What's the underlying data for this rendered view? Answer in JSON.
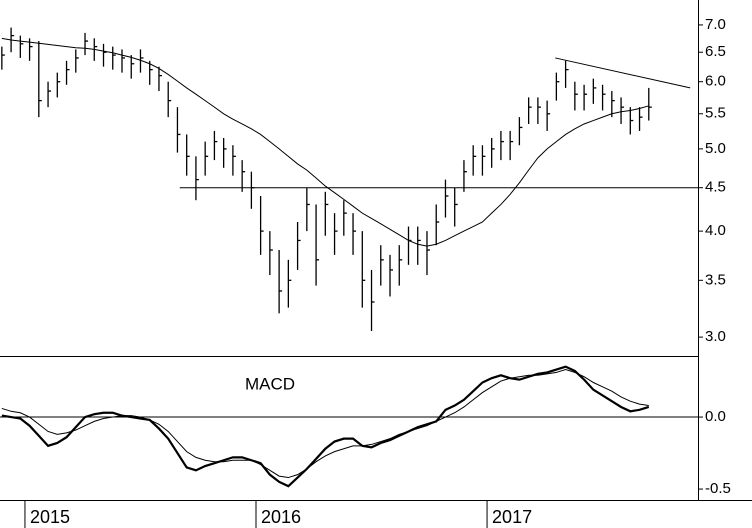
{
  "chart_data": [
    {
      "type": "ohlc",
      "yscale": "log",
      "color": "#000000",
      "xlim": [
        2014.892,
        2017.913
      ],
      "ylim": [
        2.85,
        7.49
      ],
      "yticks": [
        {
          "value": 3,
          "label": "3.0"
        },
        3.5,
        {
          "value": 4,
          "label": "4.0"
        },
        4.5,
        {
          "value": 5,
          "label": "5.0"
        },
        5.5,
        {
          "value": 6,
          "label": "6.0"
        },
        6.5,
        {
          "value": 7,
          "label": "7.0"
        }
      ],
      "x": [
        2014.9,
        2014.94,
        2014.98,
        2015.02,
        2015.06,
        2015.1,
        2015.14,
        2015.18,
        2015.22,
        2015.26,
        2015.3,
        2015.34,
        2015.38,
        2015.42,
        2015.46,
        2015.5,
        2015.54,
        2015.58,
        2015.62,
        2015.66,
        2015.7,
        2015.74,
        2015.78,
        2015.82,
        2015.86,
        2015.9,
        2015.94,
        2015.98,
        2016.02,
        2016.06,
        2016.1,
        2016.14,
        2016.18,
        2016.22,
        2016.26,
        2016.3,
        2016.34,
        2016.38,
        2016.42,
        2016.46,
        2016.5,
        2016.54,
        2016.58,
        2016.62,
        2016.66,
        2016.7,
        2016.74,
        2016.78,
        2016.82,
        2016.86,
        2016.9,
        2016.94,
        2016.98,
        2017.02,
        2017.06,
        2017.1,
        2017.14,
        2017.18,
        2017.22,
        2017.26,
        2017.3,
        2017.34,
        2017.38,
        2017.42,
        2017.46,
        2017.5,
        2017.54,
        2017.58,
        2017.62,
        2017.66,
        2017.7
      ],
      "high": [
        6.6,
        6.95,
        6.8,
        6.75,
        6.7,
        6.0,
        6.15,
        6.35,
        6.55,
        6.85,
        6.75,
        6.65,
        6.6,
        6.55,
        6.45,
        6.55,
        6.35,
        6.25,
        6.0,
        5.6,
        5.2,
        4.9,
        5.1,
        5.25,
        5.15,
        5.05,
        4.85,
        4.7,
        4.4,
        4.0,
        3.8,
        3.7,
        4.1,
        4.5,
        4.3,
        4.45,
        4.2,
        4.35,
        4.2,
        4.0,
        3.6,
        3.85,
        3.75,
        3.85,
        4.05,
        4.05,
        4.0,
        4.3,
        4.6,
        4.5,
        4.85,
        5.05,
        5.05,
        5.15,
        5.25,
        5.25,
        5.45,
        5.75,
        5.75,
        5.7,
        6.15,
        6.35,
        6.0,
        5.95,
        6.05,
        5.95,
        5.85,
        5.75,
        5.6,
        5.6,
        5.9
      ],
      "low": [
        6.2,
        6.5,
        6.4,
        6.35,
        5.45,
        5.6,
        5.75,
        5.95,
        6.15,
        6.45,
        6.35,
        6.25,
        6.2,
        6.15,
        6.05,
        6.15,
        5.95,
        5.85,
        5.45,
        4.95,
        4.65,
        4.35,
        4.65,
        4.85,
        4.75,
        4.65,
        4.45,
        4.25,
        3.75,
        3.55,
        3.2,
        3.25,
        3.6,
        4.0,
        3.45,
        3.95,
        3.75,
        3.95,
        3.75,
        3.25,
        3.05,
        3.45,
        3.35,
        3.45,
        3.65,
        3.65,
        3.55,
        3.85,
        4.15,
        4.05,
        4.45,
        4.65,
        4.65,
        4.75,
        4.85,
        4.85,
        5.05,
        5.35,
        5.35,
        5.25,
        5.7,
        5.9,
        5.55,
        5.55,
        5.65,
        5.55,
        5.45,
        5.35,
        5.2,
        5.25,
        5.4
      ],
      "close": [
        6.45,
        6.8,
        6.65,
        6.6,
        5.7,
        5.85,
        6.0,
        6.2,
        6.4,
        6.7,
        6.6,
        6.5,
        6.45,
        6.4,
        6.3,
        6.4,
        6.2,
        6.1,
        5.7,
        5.2,
        4.9,
        4.6,
        4.9,
        5.1,
        5.0,
        4.9,
        4.7,
        4.5,
        4.0,
        3.8,
        3.4,
        3.5,
        3.9,
        4.3,
        3.7,
        4.3,
        4.0,
        4.2,
        4.0,
        3.5,
        3.3,
        3.7,
        3.6,
        3.7,
        3.9,
        3.9,
        3.8,
        4.1,
        4.4,
        4.3,
        4.7,
        4.9,
        4.9,
        5.0,
        5.1,
        5.1,
        5.3,
        5.6,
        5.6,
        5.5,
        6.0,
        6.2,
        5.8,
        5.8,
        5.9,
        5.8,
        5.7,
        5.6,
        5.4,
        5.45,
        5.6
      ],
      "moving_average": [
        6.75,
        6.72,
        6.7,
        6.68,
        6.66,
        6.64,
        6.62,
        6.6,
        6.58,
        6.57,
        6.55,
        6.52,
        6.49,
        6.45,
        6.41,
        6.36,
        6.3,
        6.22,
        6.12,
        6.01,
        5.9,
        5.8,
        5.7,
        5.6,
        5.5,
        5.42,
        5.35,
        5.28,
        5.2,
        5.1,
        5.0,
        4.9,
        4.8,
        4.72,
        4.62,
        4.52,
        4.44,
        4.36,
        4.28,
        4.2,
        4.14,
        4.08,
        4.02,
        3.96,
        3.9,
        3.86,
        3.84,
        3.86,
        3.9,
        3.95,
        4.0,
        4.05,
        4.1,
        4.2,
        4.3,
        4.42,
        4.56,
        4.72,
        4.88,
        5.0,
        5.1,
        5.2,
        5.28,
        5.35,
        5.4,
        5.45,
        5.5,
        5.53,
        5.55,
        5.58,
        5.62
      ],
      "lines": [
        {
          "x": [
            2015.67,
            2017.913
          ],
          "y": [
            4.5,
            4.5
          ]
        },
        {
          "x": [
            2017.295,
            2017.879
          ],
          "y": [
            6.4,
            5.9
          ]
        }
      ]
    },
    {
      "type": "line",
      "title": "MACD",
      "zero_line": true,
      "xlim": [
        2014.892,
        2017.913
      ],
      "ylim": [
        -0.576,
        0.424
      ],
      "yticks": [
        -0.5,
        {
          "value": 0,
          "label": "0.0"
        }
      ],
      "xticks": [
        2015,
        2016,
        2017
      ],
      "x": [
        2014.9,
        2014.94,
        2014.98,
        2015.02,
        2015.06,
        2015.1,
        2015.14,
        2015.18,
        2015.22,
        2015.26,
        2015.3,
        2015.34,
        2015.38,
        2015.42,
        2015.46,
        2015.5,
        2015.54,
        2015.58,
        2015.62,
        2015.66,
        2015.7,
        2015.74,
        2015.78,
        2015.82,
        2015.86,
        2015.9,
        2015.94,
        2015.98,
        2016.02,
        2016.06,
        2016.1,
        2016.14,
        2016.18,
        2016.22,
        2016.26,
        2016.3,
        2016.34,
        2016.38,
        2016.42,
        2016.46,
        2016.5,
        2016.54,
        2016.58,
        2016.62,
        2016.66,
        2016.7,
        2016.74,
        2016.78,
        2016.82,
        2016.86,
        2016.9,
        2016.94,
        2016.98,
        2017.02,
        2017.06,
        2017.1,
        2017.14,
        2017.18,
        2017.22,
        2017.26,
        2017.3,
        2017.34,
        2017.38,
        2017.42,
        2017.46,
        2017.5,
        2017.54,
        2017.58,
        2017.62,
        2017.66,
        2017.7
      ],
      "series": [
        {
          "color": "#000000",
          "width": 2.2,
          "values": [
            0.01,
            0.0,
            -0.01,
            -0.06,
            -0.13,
            -0.2,
            -0.18,
            -0.14,
            -0.07,
            0.0,
            0.02,
            0.03,
            0.03,
            0.01,
            0.0,
            -0.01,
            -0.02,
            -0.08,
            -0.15,
            -0.25,
            -0.35,
            -0.37,
            -0.34,
            -0.32,
            -0.3,
            -0.28,
            -0.28,
            -0.3,
            -0.32,
            -0.4,
            -0.45,
            -0.48,
            -0.42,
            -0.36,
            -0.29,
            -0.22,
            -0.17,
            -0.15,
            -0.15,
            -0.2,
            -0.21,
            -0.18,
            -0.16,
            -0.13,
            -0.1,
            -0.07,
            -0.05,
            -0.03,
            0.05,
            0.08,
            0.12,
            0.18,
            0.24,
            0.27,
            0.29,
            0.27,
            0.26,
            0.28,
            0.3,
            0.31,
            0.33,
            0.35,
            0.32,
            0.26,
            0.19,
            0.15,
            0.11,
            0.07,
            0.04,
            0.05,
            0.07
          ]
        },
        {
          "color": "#000000",
          "width": 1,
          "values": [
            0.06,
            0.04,
            0.03,
            0.0,
            -0.05,
            -0.1,
            -0.12,
            -0.11,
            -0.09,
            -0.06,
            -0.03,
            -0.01,
            0.0,
            0.01,
            0.01,
            0.0,
            -0.02,
            -0.05,
            -0.1,
            -0.17,
            -0.24,
            -0.28,
            -0.3,
            -0.31,
            -0.31,
            -0.3,
            -0.3,
            -0.3,
            -0.33,
            -0.37,
            -0.41,
            -0.42,
            -0.4,
            -0.36,
            -0.31,
            -0.27,
            -0.24,
            -0.22,
            -0.2,
            -0.2,
            -0.19,
            -0.17,
            -0.15,
            -0.12,
            -0.1,
            -0.08,
            -0.06,
            -0.03,
            0.0,
            0.03,
            0.07,
            0.12,
            0.17,
            0.21,
            0.25,
            0.27,
            0.28,
            0.29,
            0.29,
            0.3,
            0.31,
            0.33,
            0.31,
            0.28,
            0.24,
            0.21,
            0.18,
            0.14,
            0.11,
            0.09,
            0.08
          ]
        }
      ]
    }
  ]
}
